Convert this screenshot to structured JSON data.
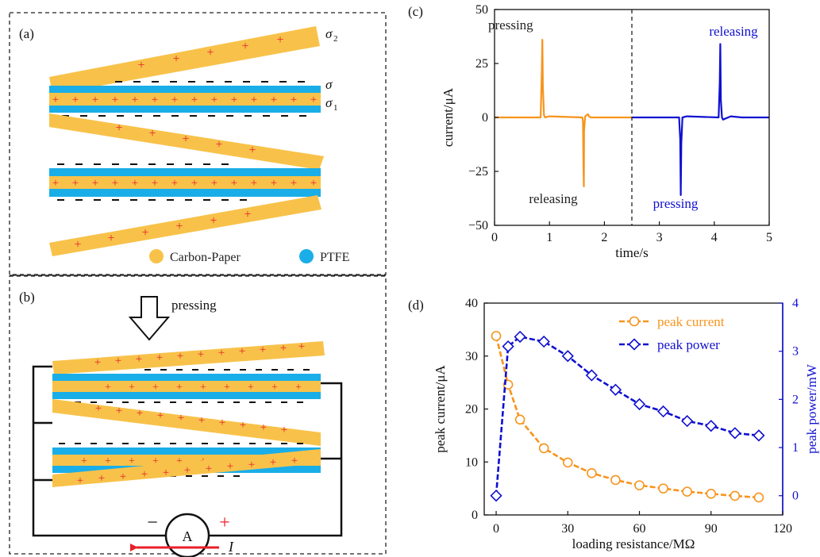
{
  "panels": {
    "a": {
      "label": "(a)",
      "sigma_labels": [
        "σ",
        "2",
        "σ",
        "σ",
        "1"
      ],
      "legend": [
        {
          "name": "Carbon-Paper",
          "color": "#F8C24A"
        },
        {
          "name": "PTFE",
          "color": "#1AAEE8"
        }
      ]
    },
    "b": {
      "label": "(b)",
      "pressing_label": "pressing",
      "ammeter_label": "A",
      "minus_sign": "−",
      "plus_sign": "+",
      "current_label": "I"
    },
    "c": {
      "label": "(c)"
    },
    "d": {
      "label": "(d)"
    }
  },
  "colors": {
    "carbon_paper": "#F8C24A",
    "ptfe": "#1AAEE8",
    "plus_charge": "#E8202A",
    "series_orange": "#F7941D",
    "series_blue": "#1010D0"
  },
  "chart_data": [
    {
      "id": "c",
      "type": "line",
      "xlabel": "time/s",
      "ylabel": "current/μA",
      "xlim": [
        0,
        5
      ],
      "ylim": [
        -50,
        50
      ],
      "xticks": [
        0,
        1,
        2,
        3,
        4,
        5
      ],
      "yticks": [
        -50,
        -25,
        0,
        25,
        50
      ],
      "divider_x": 2.5,
      "series": [
        {
          "color": "#F7941D",
          "x": [
            0.0,
            0.84,
            0.86,
            0.87,
            0.88,
            0.9,
            0.92,
            1.0,
            1.6,
            1.61,
            1.62,
            1.625,
            1.63,
            1.65,
            1.7,
            1.72,
            1.75,
            2.5
          ],
          "y": [
            0.0,
            0.0,
            20.0,
            36.0,
            14.0,
            1.0,
            0.0,
            0.5,
            0.0,
            -2.0,
            -24.0,
            -32.0,
            -6.0,
            0.5,
            1.5,
            0.5,
            0.0,
            0.0
          ]
        },
        {
          "color": "#1010D0",
          "x": [
            2.5,
            3.36,
            3.38,
            3.39,
            3.4,
            3.42,
            3.5,
            4.08,
            4.1,
            4.11,
            4.12,
            4.14,
            4.16,
            4.3,
            4.5,
            5.0
          ],
          "y": [
            0.0,
            0.0,
            -10.0,
            -36.0,
            -12.0,
            0.0,
            0.5,
            0.0,
            16.0,
            34.0,
            8.0,
            0.0,
            -1.0,
            0.5,
            0.0,
            0.0
          ]
        }
      ],
      "annotations": [
        {
          "text": "pressing",
          "color": "#222222"
        },
        {
          "text": "releasing",
          "color": "#222222"
        },
        {
          "text": "releasing",
          "color": "#1010D0"
        },
        {
          "text": "pressing",
          "color": "#1010D0"
        }
      ]
    },
    {
      "id": "d",
      "type": "line",
      "xlabel": "loading resistance/MΩ",
      "ylabel": "peak current/μA",
      "ylabel_right": "peak power/mW",
      "xlim": [
        -5,
        120
      ],
      "ylim": [
        0,
        40
      ],
      "ylim_right": [
        -0.4,
        4
      ],
      "xticks": [
        0,
        30,
        60,
        90,
        120
      ],
      "yticks": [
        0,
        10,
        20,
        30,
        40
      ],
      "yticks_right": [
        0,
        1,
        2,
        3,
        4
      ],
      "legend_position": "top-right",
      "series": [
        {
          "name": "peak current",
          "color": "#F7941D",
          "marker": "circle",
          "axis": "left",
          "x": [
            0,
            5,
            10,
            20,
            30,
            40,
            50,
            60,
            70,
            80,
            90,
            100,
            110
          ],
          "y": [
            33.8,
            24.6,
            18.0,
            12.6,
            9.9,
            7.9,
            6.6,
            5.6,
            5.0,
            4.4,
            4.0,
            3.6,
            3.3
          ]
        },
        {
          "name": "peak power",
          "color": "#1010D0",
          "marker": "diamond",
          "axis": "right",
          "x": [
            0,
            5,
            10,
            20,
            30,
            40,
            50,
            60,
            70,
            80,
            90,
            100,
            110
          ],
          "y": [
            0.0,
            3.1,
            3.3,
            3.2,
            2.9,
            2.5,
            2.2,
            1.9,
            1.75,
            1.55,
            1.45,
            1.3,
            1.25
          ]
        }
      ]
    }
  ]
}
